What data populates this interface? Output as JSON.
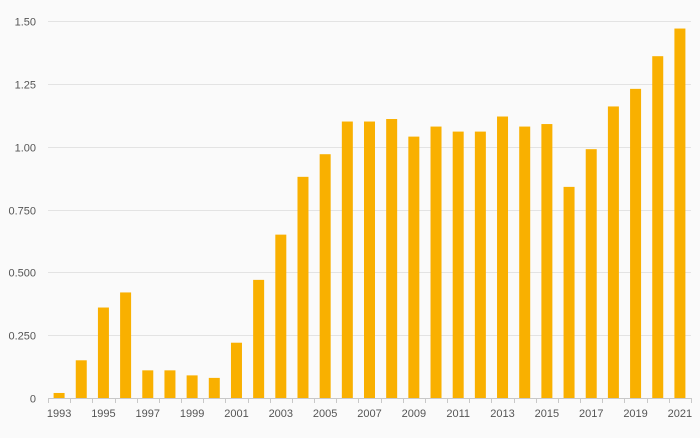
{
  "colors": {
    "bar": "#f9b000",
    "grid": "#e3e3e3",
    "axis": "#c8c8c8",
    "text": "#555555",
    "background": "#fafafa"
  },
  "chart_data": {
    "type": "bar",
    "title": "",
    "xlabel": "",
    "ylabel": "",
    "grid": true,
    "legend": "none",
    "ylim": [
      0,
      1.5
    ],
    "y_ticks": [
      "0",
      "0.250",
      "0.500",
      "0.750",
      "1.00",
      "1.25",
      "1.50"
    ],
    "y_tick_values": [
      0,
      0.25,
      0.5,
      0.75,
      1.0,
      1.25,
      1.5
    ],
    "x_tick_labels": [
      "1993",
      "1995",
      "1997",
      "1999",
      "2001",
      "2003",
      "2005",
      "2007",
      "2009",
      "2011",
      "2013",
      "2015",
      "2017",
      "2019",
      "2021"
    ],
    "categories": [
      "1993",
      "1994",
      "1995",
      "1996",
      "1997",
      "1998",
      "1999",
      "2000",
      "2001",
      "2002",
      "2003",
      "2004",
      "2005",
      "2006",
      "2007",
      "2008",
      "2009",
      "2010",
      "2011",
      "2012",
      "2013",
      "2014",
      "2015",
      "2016",
      "2017",
      "2018",
      "2019",
      "2020",
      "2021"
    ],
    "values": [
      0.02,
      0.15,
      0.36,
      0.42,
      0.11,
      0.11,
      0.09,
      0.08,
      0.22,
      0.47,
      0.65,
      0.88,
      0.97,
      1.1,
      1.1,
      1.11,
      1.04,
      1.08,
      1.06,
      1.06,
      1.12,
      1.08,
      1.09,
      0.84,
      0.99,
      1.16,
      1.23,
      1.36,
      1.47
    ]
  }
}
